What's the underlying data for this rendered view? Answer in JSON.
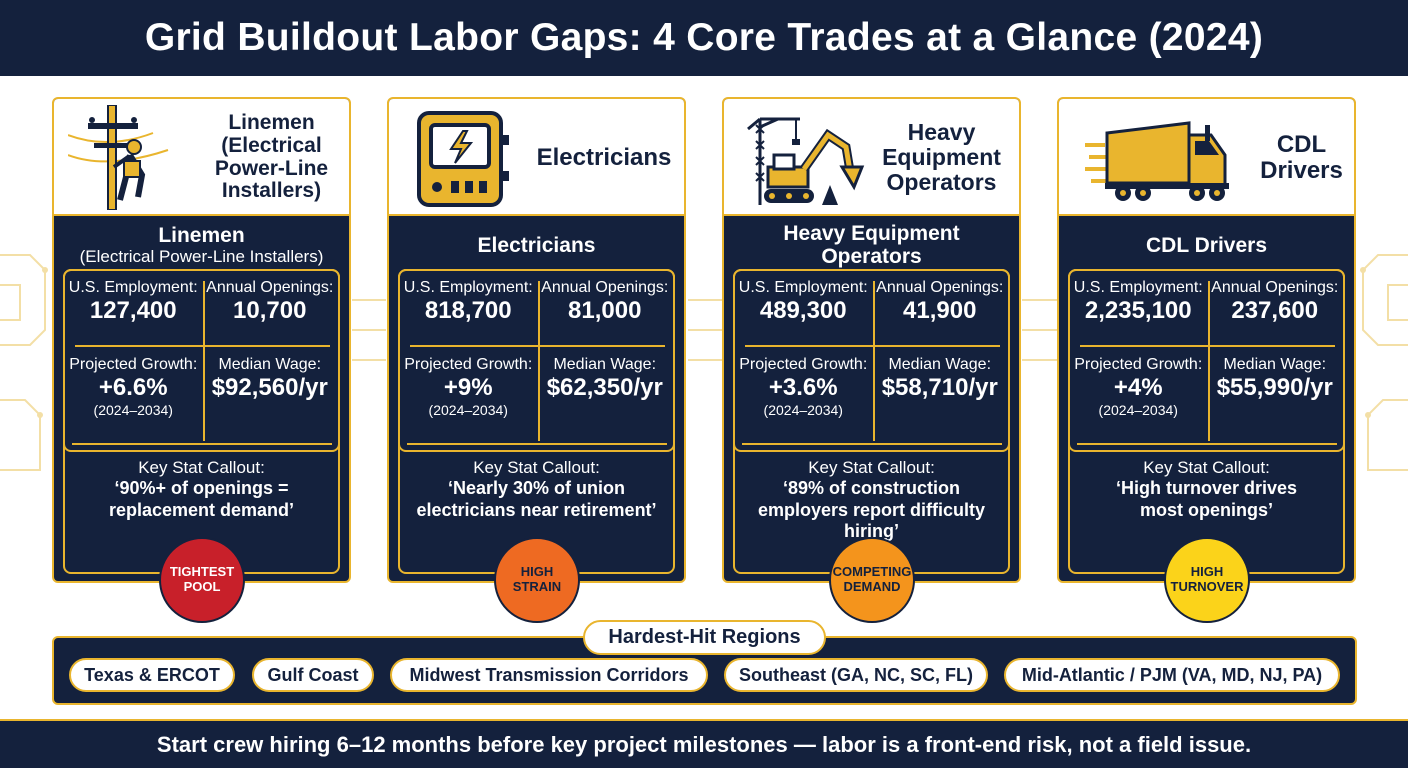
{
  "title": "Grid Buildout Labor Gaps: 4 Core Trades at a Glance (2024)",
  "colors": {
    "navy": "#14213d",
    "gold": "#e9b52e",
    "badge_red": "#c8202a",
    "badge_orange_dark": "#ee6a22",
    "badge_orange": "#f4941c",
    "badge_yellow": "#fbd31a"
  },
  "labels": {
    "employment": "U.S. Employment:",
    "openings": "Annual Openings:",
    "growth": "Projected Growth:",
    "wage": "Median Wage:",
    "growth_period": "(2024–2034)",
    "callout": "Key Stat Callout:"
  },
  "trades": [
    {
      "icon": "utility-pole-lineman-icon",
      "head_label": "Linemen (Electrical Power-Line Installers)",
      "title_main": "Linemen",
      "title_sub": "(Electrical Power-Line Installers)",
      "employment": "127,400",
      "openings": "10,700",
      "growth": "+6.6%",
      "wage": "$92,560/yr",
      "callout": "‘90%+ of openings = replacement demand’",
      "badge": "TIGHTEST POOL"
    },
    {
      "icon": "electrical-panel-icon",
      "head_label": "Electricians",
      "title_main": "Electricians",
      "title_sub": "",
      "employment": "818,700",
      "openings": "81,000",
      "growth": "+9%",
      "wage": "$62,350/yr",
      "callout": "‘Nearly 30% of union electricians near retirement’",
      "badge": "HIGH STRAIN"
    },
    {
      "icon": "excavator-crane-icon",
      "head_label": "Heavy Equipment Operators",
      "title_main": "Heavy Equipment Operators",
      "title_sub": "",
      "employment": "489,300",
      "openings": "41,900",
      "growth": "+3.6%",
      "wage": "$58,710/yr",
      "callout": "‘89% of construction employers report difficulty hiring’",
      "badge": "COMPETING DEMAND"
    },
    {
      "icon": "semi-truck-icon",
      "head_label": "CDL Drivers",
      "title_main": "CDL Drivers",
      "title_sub": "",
      "employment": "2,235,100",
      "openings": "237,600",
      "growth": "+4%",
      "wage": "$55,990/yr",
      "callout": "‘High turnover drives most openings’",
      "badge": "HIGH TURNOVER"
    }
  ],
  "regions": {
    "title": "Hardest-Hit Regions",
    "items": [
      "Texas & ERCOT",
      "Gulf Coast",
      "Midwest Transmission Corridors",
      "Southeast (GA, NC, SC, FL)",
      "Mid-Atlantic / PJM (VA, MD, NJ, PA)"
    ]
  },
  "footer": "Start crew hiring 6–12 months before key project milestones — labor is a front-end risk, not a field issue."
}
